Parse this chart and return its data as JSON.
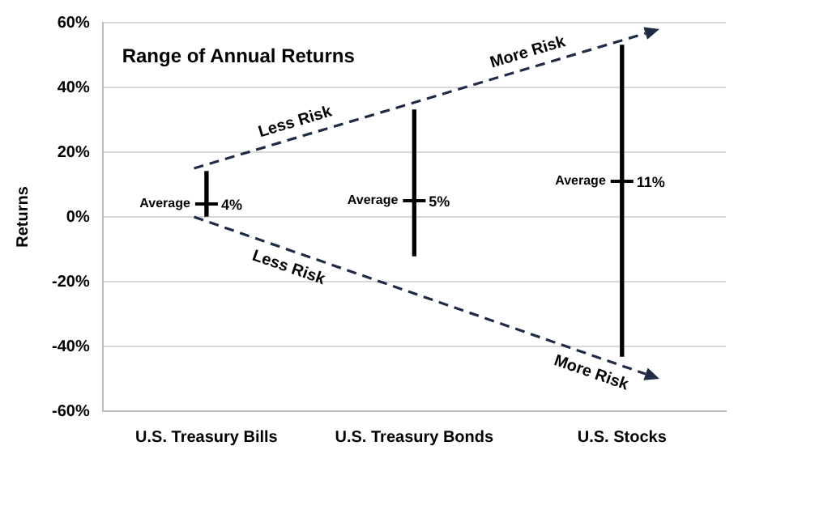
{
  "chart_data": {
    "type": "bar",
    "title": "Range of Annual Returns",
    "ylabel": "Returns",
    "categories": [
      "U.S. Treasury Bills",
      "U.S. Treasury Bonds",
      "U.S. Stocks"
    ],
    "series": [
      {
        "color": "#000000",
        "base": [
          0,
          -12,
          -43
        ],
        "values": [
          14,
          45,
          96
        ]
      },
      {
        "type": "scatter",
        "name": "Average",
        "color": "#000000",
        "marker": "cross",
        "values": [
          4,
          5,
          11
        ],
        "value_labels": [
          "4%",
          "5%",
          "11%"
        ]
      }
    ],
    "ylim": [
      -60,
      60
    ],
    "yticks": [
      {
        "value": -60,
        "label": "-60%"
      },
      {
        "value": -40,
        "label": "-40%"
      },
      {
        "value": -20,
        "label": "-20%"
      },
      {
        "value": 0,
        "label": "0%"
      },
      {
        "value": 20,
        "label": "20%"
      },
      {
        "value": 40,
        "label": "40%"
      },
      {
        "value": 60,
        "label": "60%"
      }
    ],
    "annotations": [
      "Less Risk",
      "More Risk",
      "Less Risk",
      "More Risk"
    ],
    "grid": "y",
    "legend": false
  }
}
